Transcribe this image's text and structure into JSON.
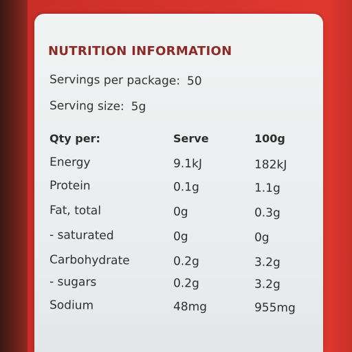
{
  "panel": {
    "title": "NUTRITION INFORMATION",
    "servings_label": "Servings per package:",
    "servings_value": "50",
    "serving_size_label": "Serving size:",
    "serving_size_value": "5g"
  },
  "table": {
    "headers": [
      "Qty per:",
      "Serve",
      "100g"
    ],
    "rows": [
      {
        "name": "Energy",
        "serve": "9.1kJ",
        "per100": "182kJ"
      },
      {
        "name": "Protein",
        "serve": "0.1g",
        "per100": "1.1g"
      },
      {
        "name": "Fat, total",
        "serve": "0g",
        "per100": "0.3g"
      },
      {
        "name": "- saturated",
        "serve": "0g",
        "per100": "0g"
      },
      {
        "name": "Carbohydrate",
        "serve": "0.2g",
        "per100": "3.2g"
      },
      {
        "name": "- sugars",
        "serve": "0.2g",
        "per100": "3.2g"
      },
      {
        "name": "Sodium",
        "serve": "48mg",
        "per100": "955mg"
      }
    ]
  },
  "colors": {
    "background_red": "#d8342c",
    "title_red": "#8c2a27",
    "label_white": "#eef1f1"
  }
}
